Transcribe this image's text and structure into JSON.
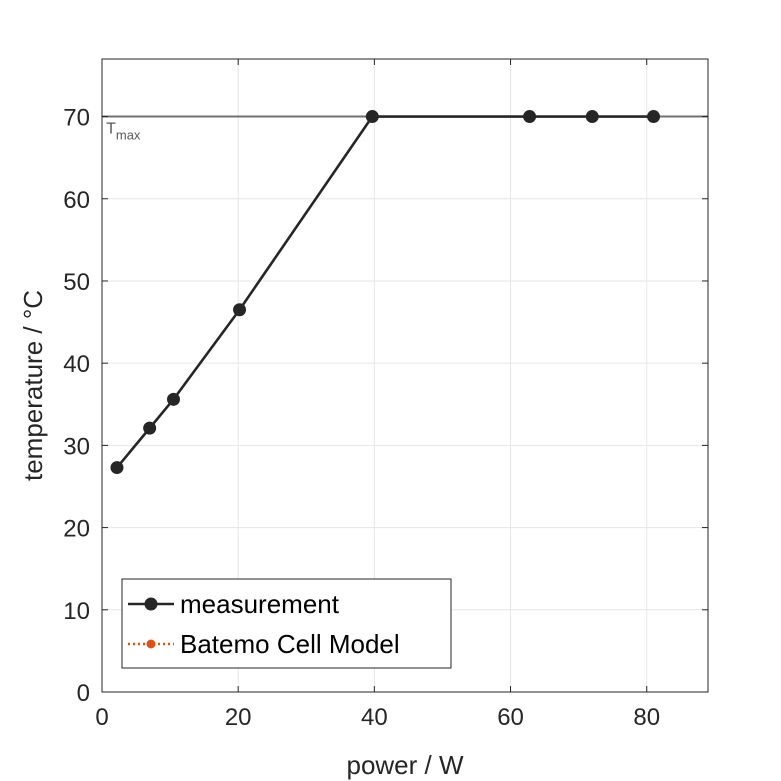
{
  "chart_data": {
    "type": "line",
    "xlabel": "power / W",
    "ylabel": "temperature / °C",
    "xlim": [
      0,
      89
    ],
    "ylim": [
      0,
      77
    ],
    "xticks": [
      0,
      20,
      40,
      60,
      80
    ],
    "yticks": [
      0,
      10,
      20,
      30,
      40,
      50,
      60,
      70
    ],
    "grid": true,
    "legend_position": "bottom-left",
    "series": [
      {
        "name": "measurement",
        "color": "#262626",
        "marker": "circle",
        "line": "solid",
        "x": [
          2.2,
          7.0,
          10.5,
          20.2,
          39.7,
          62.8,
          72.0,
          81.0
        ],
        "y": [
          27.3,
          32.1,
          35.6,
          46.5,
          70.0,
          70.0,
          70.0,
          70.0
        ]
      },
      {
        "name": "Batemo Cell Model",
        "color": "#D95319",
        "marker": "circle",
        "line": "dotted",
        "x": [],
        "y": []
      }
    ],
    "hlines": [
      {
        "y": 70,
        "color": "#707070"
      }
    ],
    "annotations": [
      {
        "text": "T",
        "subscript": "max",
        "x": 0.6,
        "y": 68.2
      }
    ]
  }
}
